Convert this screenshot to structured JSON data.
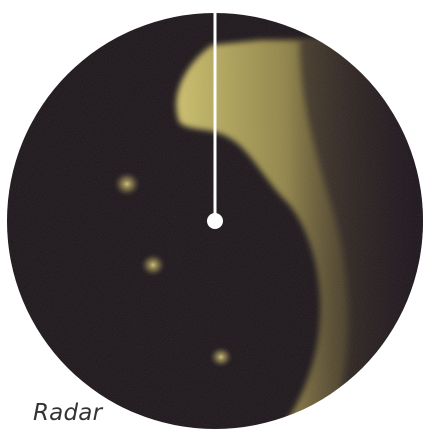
{
  "radar": {
    "label": "Radar",
    "colors": {
      "background": "#150e13",
      "echo": "#d2c46a",
      "sweep_line": "#ffffff",
      "label": "#333333"
    },
    "blips": [
      {
        "name": "blip-1"
      },
      {
        "name": "blip-2"
      },
      {
        "name": "blip-3"
      }
    ]
  }
}
